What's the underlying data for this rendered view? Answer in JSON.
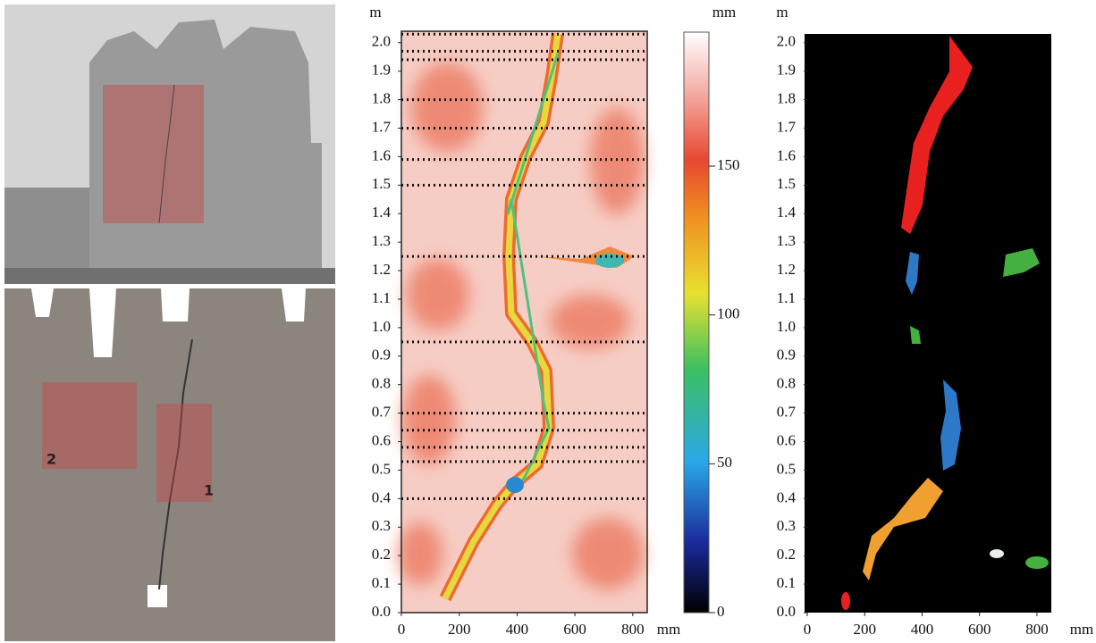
{
  "photo_panel": {
    "labels": [
      "1",
      "2"
    ]
  },
  "heatmap_panel": {
    "y_unit": "m",
    "x_unit": "mm",
    "ylim": [
      0,
      2.04
    ],
    "xlim": [
      0,
      850
    ],
    "yticks": [
      {
        "value": 0,
        "label": "0.0"
      },
      0.1,
      0.2,
      0.3,
      0.4,
      0.5,
      0.6,
      0.7,
      0.8,
      0.9,
      {
        "value": 1,
        "label": "1.0"
      },
      1.1,
      1.2,
      1.3,
      1.4,
      1.5,
      1.6,
      1.7,
      1.8,
      1.9,
      {
        "value": 2,
        "label": "2.0"
      }
    ],
    "xticks": [
      0,
      200,
      400,
      600,
      800
    ],
    "section_lines": [
      2.03,
      1.97,
      1.94,
      1.8,
      1.7,
      1.59,
      1.5,
      1.25,
      0.95,
      0.7,
      0.64,
      0.58,
      0.53,
      0.4
    ]
  },
  "colorbar": {
    "unit": "mm",
    "lim": [
      0,
      195
    ],
    "ticks": [
      0,
      50,
      100,
      150
    ]
  },
  "segmentation_panel": {
    "y_unit": "m",
    "x_unit": "mm",
    "ylim": [
      0,
      2.04
    ],
    "xlim": [
      0,
      850
    ],
    "yticks": [
      {
        "value": 0,
        "label": "0.0"
      },
      0.1,
      0.2,
      0.3,
      0.4,
      0.5,
      0.6,
      0.7,
      0.8,
      0.9,
      {
        "value": 1,
        "label": "1.0"
      },
      1.1,
      1.2,
      1.3,
      1.4,
      1.5,
      1.6,
      1.7,
      1.8,
      1.9,
      {
        "value": 2,
        "label": "2.0"
      }
    ],
    "xticks": [
      0,
      200,
      400,
      600,
      800
    ]
  }
}
